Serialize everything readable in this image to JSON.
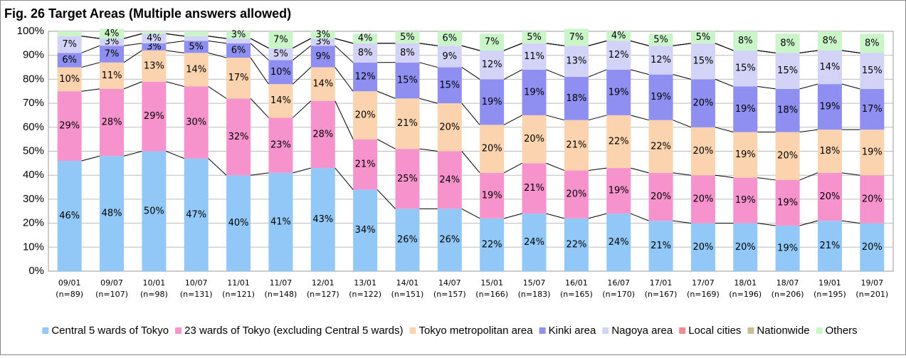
{
  "chart_data": {
    "type": "stacked-bar",
    "title": "Fig. 26 Target Areas (Multiple answers allowed)",
    "categories": [
      "09/01",
      "09/07",
      "10/01",
      "10/07",
      "11/01",
      "11/07",
      "12/01",
      "13/01",
      "14/01",
      "14/07",
      "15/01",
      "15/07",
      "16/01",
      "16/07",
      "17/01",
      "17/07",
      "18/01",
      "18/07",
      "19/01",
      "19/07"
    ],
    "category_notes": [
      "(n=89)",
      "(n=107)",
      "(n=98)",
      "(n=131)",
      "(n=121)",
      "(n=148)",
      "(n=127)",
      "(n=122)",
      "(n=151)",
      "(n=157)",
      "(n=166)",
      "(n=183)",
      "(n=165)",
      "(n=170)",
      "(n=167)",
      "(n=169)",
      "(n=196)",
      "(n=206)",
      "(n=195)",
      "(n=201)"
    ],
    "ylim": [
      0,
      100
    ],
    "yticks": [
      {
        "value": 0,
        "label": "0%"
      },
      {
        "value": 10,
        "label": "10%"
      },
      {
        "value": 20,
        "label": "20%"
      },
      {
        "value": 30,
        "label": "30%"
      },
      {
        "value": 40,
        "label": "40%"
      },
      {
        "value": 50,
        "label": "50%"
      },
      {
        "value": 60,
        "label": "60%"
      },
      {
        "value": 70,
        "label": "70%"
      },
      {
        "value": 80,
        "label": "80%"
      },
      {
        "value": 90,
        "label": "90%"
      },
      {
        "value": 100,
        "label": "100%"
      }
    ],
    "grid": true,
    "legend": "bottom",
    "series": [
      {
        "name": "Central 5 wards of Tokyo",
        "color": "#92c8f7",
        "values": [
          46,
          48,
          50,
          47,
          40,
          41,
          43,
          34,
          26,
          26,
          22,
          24,
          22,
          24,
          21,
          20,
          20,
          19,
          21,
          20
        ],
        "value_labels": [
          "46%",
          "48%",
          "50%",
          "47%",
          "40%",
          "41%",
          "43%",
          "34%",
          "26%",
          "26%",
          "22%",
          "24%",
          "22%",
          "24%",
          "21%",
          "20%",
          "20%",
          "19%",
          "21%",
          "20%"
        ]
      },
      {
        "name": "23 wards of Tokyo (excluding Central 5 wards)",
        "color": "#f793cc",
        "values": [
          29,
          28,
          29,
          30,
          32,
          23,
          28,
          21,
          25,
          24,
          19,
          21,
          20,
          19,
          20,
          20,
          19,
          19,
          20,
          20
        ],
        "value_labels": [
          "29%",
          "28%",
          "29%",
          "30%",
          "32%",
          "23%",
          "28%",
          "21%",
          "25%",
          "24%",
          "19%",
          "21%",
          "20%",
          "19%",
          "20%",
          "20%",
          "19%",
          "19%",
          "20%",
          "20%"
        ]
      },
      {
        "name": "Tokyo metropolitan area",
        "color": "#fbd3ae",
        "values": [
          10,
          11,
          13,
          14,
          17,
          14,
          14,
          20,
          21,
          20,
          20,
          20,
          21,
          22,
          22,
          20,
          19,
          20,
          18,
          19
        ],
        "value_labels": [
          "10%",
          "11%",
          "13%",
          "14%",
          "17%",
          "14%",
          "14%",
          "20%",
          "21%",
          "20%",
          "20%",
          "20%",
          "21%",
          "22%",
          "22%",
          "20%",
          "19%",
          "20%",
          "18%",
          "19%"
        ]
      },
      {
        "name": "Kinki area",
        "color": "#8f8ff2",
        "values": [
          6,
          7,
          3,
          5,
          6,
          10,
          9,
          12,
          15,
          15,
          19,
          19,
          18,
          19,
          19,
          20,
          19,
          18,
          19,
          17
        ],
        "value_labels": [
          "6%",
          "7%",
          "3%",
          "5%",
          "6%",
          "10%",
          "9%",
          "12%",
          "15%",
          "15%",
          "19%",
          "19%",
          "18%",
          "19%",
          "19%",
          "20%",
          "19%",
          "18%",
          "19%",
          "17%"
        ]
      },
      {
        "name": "Nagoya area",
        "color": "#d3d3f7",
        "values": [
          7,
          3,
          4,
          2,
          2,
          5,
          3,
          8,
          8,
          9,
          12,
          11,
          13,
          12,
          12,
          15,
          15,
          15,
          14,
          15
        ],
        "value_labels": [
          "7%",
          "3%",
          "4%",
          null,
          null,
          "5%",
          "3%",
          "8%",
          "8%",
          "9%",
          "12%",
          "11%",
          "13%",
          "12%",
          "12%",
          "15%",
          "15%",
          "15%",
          "14%",
          "15%"
        ]
      },
      {
        "name": "Local cities",
        "color": "#f28b8b",
        "values": [
          0,
          0,
          0,
          0,
          0,
          0,
          0,
          0,
          0,
          0,
          0,
          0,
          0,
          0,
          0,
          0,
          0,
          0,
          0,
          0
        ],
        "value_labels": [
          null,
          null,
          null,
          null,
          null,
          null,
          null,
          null,
          null,
          null,
          null,
          null,
          null,
          null,
          null,
          null,
          null,
          null,
          null,
          null
        ]
      },
      {
        "name": "Nationwide",
        "color": "#c9bd93",
        "values": [
          0,
          0,
          0,
          0,
          0,
          0,
          0,
          0,
          0,
          0,
          0,
          0,
          0,
          0,
          0,
          0,
          0,
          0,
          0,
          0
        ],
        "value_labels": [
          null,
          null,
          null,
          null,
          null,
          null,
          null,
          null,
          null,
          null,
          null,
          null,
          null,
          null,
          null,
          null,
          null,
          null,
          null,
          null
        ]
      },
      {
        "name": "Others",
        "color": "#c9f5c9",
        "values": [
          2,
          4,
          1,
          2,
          3,
          7,
          3,
          4,
          5,
          6,
          7,
          5,
          7,
          4,
          5,
          5,
          8,
          8,
          8,
          8
        ],
        "value_labels": [
          null,
          "4%",
          null,
          null,
          "3%",
          "7%",
          "3%",
          "4%",
          "5%",
          "6%",
          "7%",
          "5%",
          "7%",
          "4%",
          "5%",
          "5%",
          "8%",
          "8%",
          "8%",
          "8%"
        ]
      }
    ]
  }
}
